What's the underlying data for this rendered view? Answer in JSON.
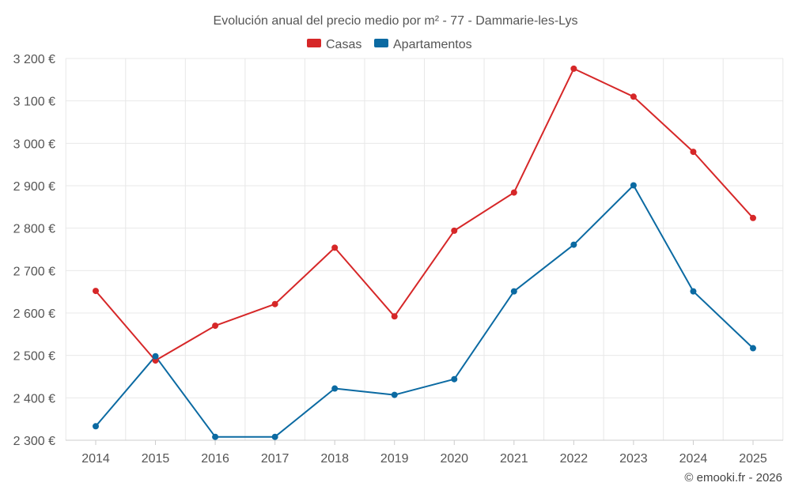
{
  "chart_data": {
    "type": "line",
    "title": "Evolución anual del precio medio por m² - 77 - Dammarie-les-Lys",
    "categories": [
      "2014",
      "2015",
      "2016",
      "2017",
      "2018",
      "2019",
      "2020",
      "2021",
      "2022",
      "2023",
      "2024",
      "2025"
    ],
    "series": [
      {
        "name": "Casas",
        "color": "#d62728",
        "values": [
          2652,
          2488,
          2570,
          2621,
          2754,
          2592,
          2794,
          2884,
          3176,
          3110,
          2980,
          2824
        ]
      },
      {
        "name": "Apartamentos",
        "color": "#0b6aa2",
        "values": [
          2333,
          2498,
          2308,
          2308,
          2422,
          2407,
          2444,
          2651,
          2761,
          2901,
          2651,
          2517
        ]
      }
    ],
    "ylim": [
      2300,
      3200
    ],
    "yticks": [
      2300,
      2400,
      2500,
      2600,
      2700,
      2800,
      2900,
      3000,
      3100,
      3200
    ],
    "ytick_labels": [
      "2 300 €",
      "2 400 €",
      "2 500 €",
      "2 600 €",
      "2 700 €",
      "2 800 €",
      "2 900 €",
      "3 000 €",
      "3 100 €",
      "3 200 €"
    ],
    "xlabel": "",
    "ylabel": "",
    "legend_position": "top-center",
    "grid": true
  },
  "credit": "© emooki.fr - 2026"
}
